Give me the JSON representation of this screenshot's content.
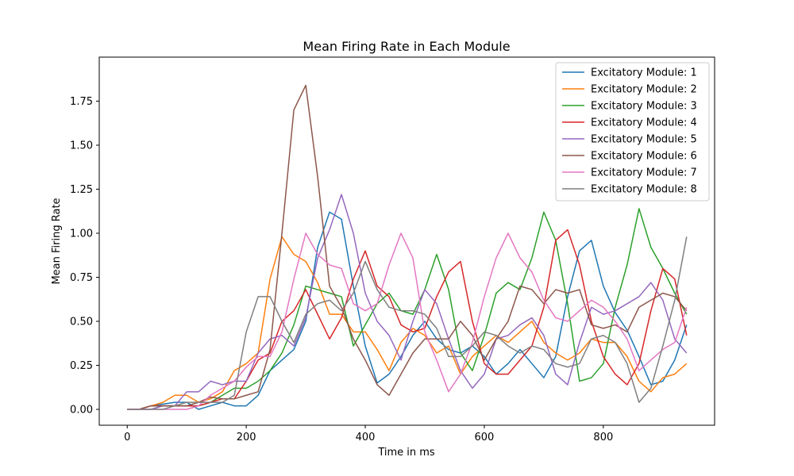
{
  "chart_data": {
    "type": "line",
    "title": "Mean Firing Rate in Each Module",
    "xlabel": "Time in ms",
    "ylabel": "Mean Firing Rate",
    "xlim": [
      -47,
      987
    ],
    "ylim": [
      -0.09,
      2.0
    ],
    "xticks": [
      0,
      200,
      400,
      600,
      800
    ],
    "yticks": [
      0.0,
      0.25,
      0.5,
      0.75,
      1.0,
      1.25,
      1.5,
      1.75
    ],
    "ytick_labels": [
      "0.00",
      "0.25",
      "0.50",
      "0.75",
      "1.00",
      "1.25",
      "1.50",
      "1.75"
    ],
    "legend_position": "top-right",
    "x": [
      0,
      20,
      40,
      60,
      80,
      100,
      120,
      140,
      160,
      180,
      200,
      220,
      240,
      260,
      280,
      300,
      320,
      340,
      360,
      380,
      400,
      420,
      440,
      460,
      480,
      500,
      520,
      540,
      560,
      580,
      600,
      620,
      640,
      660,
      680,
      700,
      720,
      740,
      760,
      780,
      800,
      820,
      840,
      860,
      880,
      900,
      920,
      940
    ],
    "series": [
      {
        "name": "Excitatory Module: 1",
        "color": "#1f77b4",
        "values": [
          0.0,
          0.0,
          0.02,
          0.03,
          0.04,
          0.04,
          0.0,
          0.02,
          0.04,
          0.02,
          0.02,
          0.08,
          0.22,
          0.28,
          0.34,
          0.5,
          0.92,
          1.12,
          1.08,
          0.7,
          0.36,
          0.15,
          0.2,
          0.3,
          0.42,
          0.5,
          0.4,
          0.34,
          0.32,
          0.36,
          0.3,
          0.2,
          0.26,
          0.34,
          0.26,
          0.18,
          0.3,
          0.64,
          0.9,
          0.96,
          0.7,
          0.55,
          0.45,
          0.3,
          0.14,
          0.16,
          0.28,
          0.48
        ]
      },
      {
        "name": "Excitatory Module: 2",
        "color": "#ff7f0e",
        "values": [
          0.0,
          0.0,
          0.02,
          0.04,
          0.08,
          0.08,
          0.04,
          0.06,
          0.1,
          0.22,
          0.26,
          0.32,
          0.74,
          0.98,
          0.88,
          0.84,
          0.72,
          0.54,
          0.54,
          0.44,
          0.44,
          0.34,
          0.22,
          0.38,
          0.46,
          0.42,
          0.32,
          0.36,
          0.2,
          0.3,
          0.36,
          0.42,
          0.38,
          0.44,
          0.5,
          0.38,
          0.32,
          0.28,
          0.32,
          0.4,
          0.38,
          0.38,
          0.3,
          0.16,
          0.1,
          0.18,
          0.2,
          0.26
        ]
      },
      {
        "name": "Excitatory Module: 3",
        "color": "#2ca02c",
        "values": [
          0.0,
          0.0,
          0.0,
          0.02,
          0.02,
          0.02,
          0.02,
          0.04,
          0.08,
          0.12,
          0.12,
          0.16,
          0.22,
          0.32,
          0.48,
          0.7,
          0.68,
          0.66,
          0.64,
          0.36,
          0.48,
          0.6,
          0.66,
          0.56,
          0.54,
          0.68,
          0.88,
          0.68,
          0.32,
          0.22,
          0.42,
          0.66,
          0.72,
          0.68,
          0.86,
          1.12,
          0.96,
          0.6,
          0.16,
          0.18,
          0.26,
          0.58,
          0.82,
          1.14,
          0.92,
          0.8,
          0.66,
          0.54
        ]
      },
      {
        "name": "Excitatory Module: 4",
        "color": "#d62728",
        "values": [
          0.0,
          0.0,
          0.02,
          0.02,
          0.02,
          0.02,
          0.02,
          0.04,
          0.06,
          0.06,
          0.16,
          0.28,
          0.32,
          0.5,
          0.56,
          0.68,
          0.54,
          0.4,
          0.52,
          0.74,
          0.9,
          0.7,
          0.64,
          0.48,
          0.44,
          0.46,
          0.64,
          0.78,
          0.84,
          0.5,
          0.26,
          0.2,
          0.2,
          0.28,
          0.36,
          0.58,
          0.96,
          1.02,
          0.82,
          0.5,
          0.3,
          0.2,
          0.14,
          0.26,
          0.56,
          0.8,
          0.74,
          0.42
        ]
      },
      {
        "name": "Excitatory Module: 5",
        "color": "#9467bd",
        "values": [
          0.0,
          0.0,
          0.0,
          0.02,
          0.02,
          0.1,
          0.1,
          0.16,
          0.14,
          0.16,
          0.16,
          0.32,
          0.4,
          0.42,
          0.36,
          0.52,
          0.86,
          1.02,
          1.22,
          1.0,
          0.66,
          0.5,
          0.42,
          0.28,
          0.5,
          0.68,
          0.6,
          0.4,
          0.22,
          0.12,
          0.2,
          0.4,
          0.42,
          0.48,
          0.52,
          0.42,
          0.2,
          0.14,
          0.38,
          0.58,
          0.54,
          0.56,
          0.6,
          0.64,
          0.72,
          0.62,
          0.4,
          0.32
        ]
      },
      {
        "name": "Excitatory Module: 6",
        "color": "#8c564b",
        "values": [
          0.0,
          0.0,
          0.02,
          0.02,
          0.02,
          0.02,
          0.04,
          0.07,
          0.06,
          0.06,
          0.08,
          0.1,
          0.34,
          1.0,
          1.7,
          1.84,
          1.32,
          0.7,
          0.58,
          0.4,
          0.28,
          0.14,
          0.08,
          0.2,
          0.32,
          0.4,
          0.4,
          0.4,
          0.5,
          0.42,
          0.28,
          0.4,
          0.5,
          0.7,
          0.68,
          0.6,
          0.68,
          0.66,
          0.68,
          0.48,
          0.46,
          0.48,
          0.44,
          0.58,
          0.62,
          0.66,
          0.64,
          0.56
        ]
      },
      {
        "name": "Excitatory Module: 7",
        "color": "#e377c2",
        "values": [
          0.0,
          0.0,
          0.0,
          0.0,
          0.0,
          0.0,
          0.02,
          0.08,
          0.12,
          0.16,
          0.24,
          0.3,
          0.3,
          0.44,
          0.74,
          1.0,
          0.88,
          0.82,
          0.8,
          0.6,
          0.56,
          0.6,
          0.82,
          1.0,
          0.86,
          0.44,
          0.28,
          0.1,
          0.2,
          0.38,
          0.64,
          0.86,
          1.0,
          0.86,
          0.78,
          0.62,
          0.52,
          0.5,
          0.56,
          0.62,
          0.58,
          0.5,
          0.4,
          0.22,
          0.28,
          0.34,
          0.38,
          0.58
        ]
      },
      {
        "name": "Excitatory Module: 8",
        "color": "#7f7f7f",
        "values": [
          0.0,
          0.0,
          0.0,
          0.0,
          0.02,
          0.04,
          0.04,
          0.04,
          0.04,
          0.08,
          0.44,
          0.64,
          0.64,
          0.5,
          0.38,
          0.54,
          0.6,
          0.62,
          0.56,
          0.66,
          0.84,
          0.68,
          0.58,
          0.56,
          0.56,
          0.54,
          0.46,
          0.3,
          0.3,
          0.36,
          0.44,
          0.42,
          0.36,
          0.32,
          0.36,
          0.34,
          0.26,
          0.24,
          0.26,
          0.4,
          0.42,
          0.38,
          0.26,
          0.04,
          0.12,
          0.36,
          0.62,
          0.98
        ]
      }
    ]
  }
}
